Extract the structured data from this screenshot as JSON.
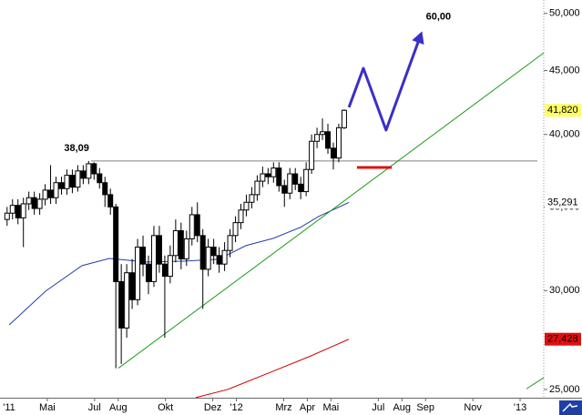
{
  "chart_data": {
    "type": "candlestick",
    "log": true,
    "xlim": [
      2.0,
      25.0
    ],
    "ylim": [
      24500,
      51250
    ],
    "xticks": [
      {
        "value": 0,
        "label": "'11"
      },
      {
        "value": 4,
        "label": "Mai"
      },
      {
        "value": 6,
        "label": "Jul"
      },
      {
        "value": 7,
        "label": "Aug"
      },
      {
        "value": 9,
        "label": "Okt"
      },
      {
        "value": 11,
        "label": "Dez"
      },
      {
        "value": 12,
        "label": "'12"
      },
      {
        "value": 14,
        "label": "Mrz"
      },
      {
        "value": 15,
        "label": "Apr"
      },
      {
        "value": 16,
        "label": "Mai"
      },
      {
        "value": 18,
        "label": "Jul"
      },
      {
        "value": 19,
        "label": "Aug"
      },
      {
        "value": 20,
        "label": "Sep"
      },
      {
        "value": 22,
        "label": "Nov"
      },
      {
        "value": 24,
        "label": "'13"
      }
    ],
    "yticks": [
      {
        "value": 25000,
        "label": "25,000"
      },
      {
        "value": 30000,
        "label": "30,000"
      },
      {
        "value": 35000,
        "label": "35,000"
      },
      {
        "value": 40000,
        "label": "40,000"
      },
      {
        "value": 45000,
        "label": "45,000"
      },
      {
        "value": 50000,
        "label": "50,000"
      }
    ],
    "up_color": "#ffffff",
    "down_color": "#000000",
    "x": [
      2.3,
      2.53,
      2.76,
      2.99,
      3.22,
      3.45,
      3.68,
      3.91,
      4.14,
      4.37,
      4.6,
      4.83,
      5.06,
      5.29,
      5.52,
      5.75,
      5.98,
      6.21,
      6.44,
      6.67,
      6.9,
      7.13,
      7.36,
      7.59,
      7.82,
      8.05,
      8.28,
      8.51,
      8.74,
      8.97,
      9.2,
      9.43,
      9.66,
      9.89,
      10.12,
      10.35,
      10.58,
      10.81,
      11.04,
      11.27,
      11.5,
      11.73,
      11.96,
      12.19,
      12.42,
      12.65,
      12.88,
      13.11,
      13.34,
      13.57,
      13.8,
      14.03,
      14.26,
      14.49,
      14.72,
      14.95,
      15.18,
      15.41,
      15.64,
      15.87,
      16.1,
      16.33,
      16.56
    ],
    "open": [
      34200,
      34600,
      35100,
      34300,
      35200,
      35600,
      34900,
      35500,
      36100,
      35600,
      36600,
      36200,
      37100,
      36300,
      37400,
      36900,
      37900,
      37200,
      36600,
      35800,
      35000,
      30500,
      28000,
      31000,
      29500,
      32500,
      31500,
      30500,
      33200,
      31500,
      30800,
      32000,
      33500,
      31800,
      33000,
      34500,
      33200,
      31200,
      32500,
      32000,
      31500,
      32300,
      33200,
      34000,
      34800,
      35300,
      35800,
      36700,
      37200,
      37000,
      37600,
      36400,
      35900,
      37200,
      36500,
      36000,
      37500,
      39500,
      40000,
      40200,
      39000,
      38300,
      40500
    ],
    "high": [
      35000,
      35500,
      35500,
      35600,
      36000,
      36000,
      35900,
      36500,
      37800,
      37000,
      37000,
      37500,
      37500,
      37800,
      37800,
      38090,
      38000,
      37600,
      37000,
      36200,
      35200,
      31500,
      31500,
      31800,
      33000,
      33200,
      32000,
      33800,
      33800,
      32000,
      32600,
      34200,
      34000,
      33500,
      35000,
      35300,
      33600,
      33000,
      33000,
      32500,
      32800,
      33600,
      34400,
      35200,
      35800,
      36300,
      37100,
      37700,
      37600,
      38000,
      38000,
      36800,
      37600,
      37600,
      37000,
      38000,
      40000,
      40500,
      41200,
      40800,
      39400,
      40800,
      41900
    ],
    "low": [
      33800,
      34200,
      33900,
      32500,
      34800,
      34500,
      34500,
      35100,
      35200,
      35200,
      35800,
      35800,
      35900,
      36000,
      36500,
      36500,
      36800,
      36200,
      35000,
      34500,
      26000,
      26200,
      27500,
      29000,
      29200,
      30800,
      29800,
      30200,
      31000,
      27500,
      30400,
      31600,
      31200,
      31400,
      32600,
      32800,
      29000,
      30800,
      31500,
      31000,
      31100,
      31900,
      32800,
      33600,
      34400,
      34900,
      35400,
      36300,
      36500,
      36600,
      36000,
      35000,
      35500,
      36100,
      35500,
      35700,
      37200,
      39000,
      39600,
      38600,
      37500,
      38000,
      40400
    ],
    "close": [
      34600,
      35100,
      34300,
      35200,
      35600,
      34900,
      35500,
      36100,
      35600,
      36600,
      36200,
      37100,
      36300,
      37400,
      36900,
      37900,
      37200,
      36600,
      35800,
      35000,
      30500,
      28000,
      31000,
      29500,
      32500,
      31500,
      30500,
      33200,
      31500,
      30800,
      32000,
      33500,
      31800,
      33000,
      34500,
      33200,
      31200,
      32500,
      32000,
      31500,
      32300,
      33200,
      34000,
      34800,
      35300,
      35800,
      36700,
      37200,
      37000,
      37600,
      36400,
      35900,
      37200,
      36500,
      36000,
      37500,
      39500,
      40000,
      40200,
      39000,
      38300,
      40500,
      41820
    ],
    "lines": [
      {
        "color": "#1f3fa8",
        "x": [
          2.39,
          3.93,
          5.47,
          6.62,
          8.16,
          9.71,
          11.25,
          12.4,
          13.56,
          14.71,
          15.48,
          16.76
        ],
        "values": [
          28160,
          29970,
          31410,
          31830,
          31620,
          31670,
          31780,
          32590,
          33030,
          33710,
          34390,
          35291
        ]
      },
      {
        "color": "#cc0000",
        "x": [
          10.28,
          11.63,
          13.56,
          15.1,
          16.76
        ],
        "values": [
          24630,
          25000,
          25860,
          26570,
          27428
        ]
      },
      {
        "color": "#1a9a1a",
        "x": [
          7.01,
          25.0
        ],
        "values": [
          26000,
          46490
        ]
      },
      {
        "color": "#1a9a1a",
        "x": [
          24.27,
          25.0
        ],
        "values": [
          25030,
          25550
        ]
      }
    ],
    "level": {
      "value": 38090,
      "label": "38,09",
      "x": [
        5.85,
        24.73
      ],
      "color": "#808080"
    },
    "target_line": {
      "value": 37640,
      "x": [
        17.1,
        18.57
      ],
      "color": "#e01010"
    },
    "projection": {
      "label": "60,00",
      "color": "#3a2fc8",
      "x": [
        16.76,
        17.37,
        18.33,
        19.8
      ],
      "values": [
        42050,
        45190,
        40320,
        48070
      ]
    },
    "markers": [
      {
        "value": 41820,
        "label": "41,820",
        "color": "#000000",
        "background": "#ffff66"
      },
      {
        "value": 35291,
        "label": "35,291",
        "color": "#1f3fa8",
        "background": "#ffffff"
      },
      {
        "value": 27428,
        "label": "27,428",
        "color": "#ffffff",
        "background": "#e01010"
      }
    ]
  }
}
